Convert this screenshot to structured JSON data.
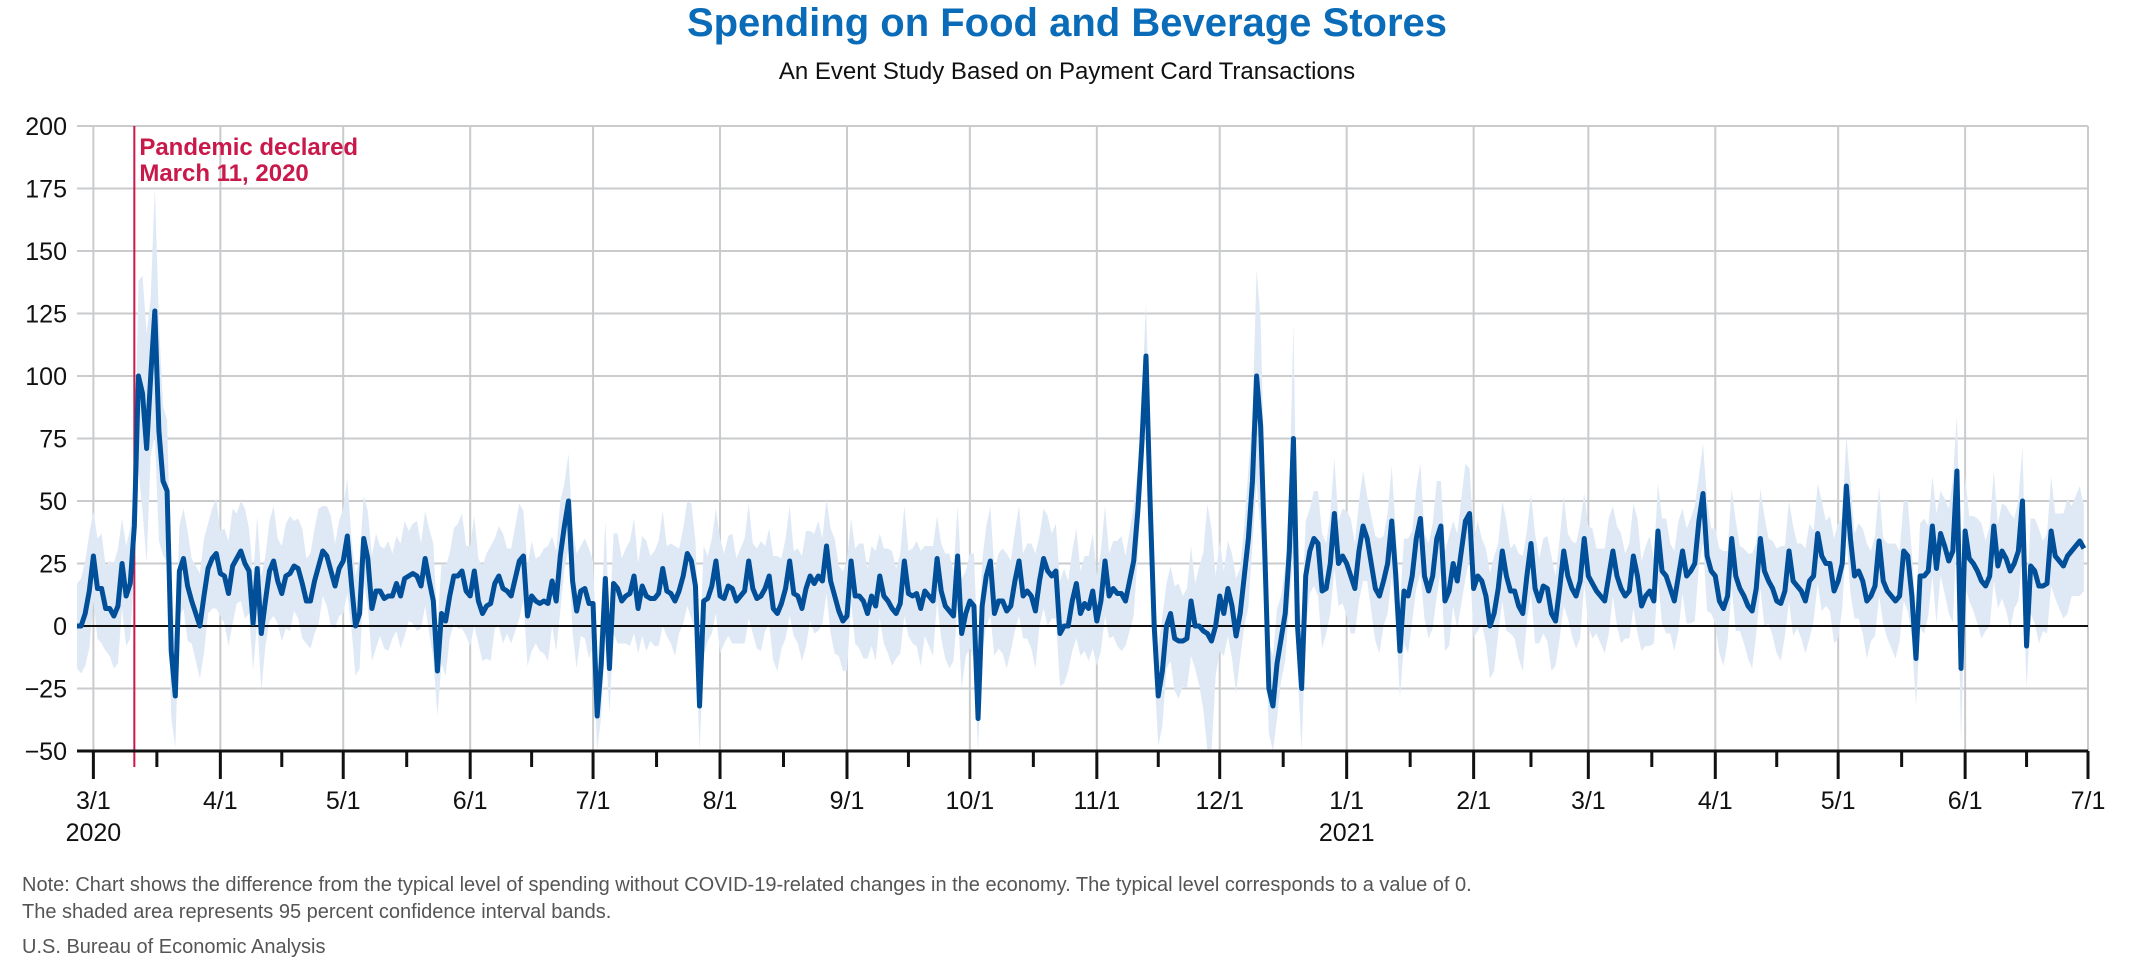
{
  "chart_data": {
    "type": "line",
    "title": "Spending on Food and Beverage Stores",
    "subtitle": "An Event Study Based on Payment Card Transactions",
    "xlabel": "",
    "ylabel": "",
    "ylim": [
      -50,
      200
    ],
    "yticks": [
      200,
      175,
      150,
      125,
      100,
      75,
      50,
      25,
      0,
      -25,
      -50
    ],
    "ytick_labels": [
      "200",
      "175",
      "150",
      "125",
      "100",
      "75",
      "50",
      "25",
      "0",
      "−25",
      "−50"
    ],
    "xlim": [
      "2020-02-26",
      "2021-07-01"
    ],
    "xticks": [
      {
        "date": "2020-03-01",
        "label": "3/1",
        "year": "2020"
      },
      {
        "date": "2020-04-01",
        "label": "4/1"
      },
      {
        "date": "2020-05-01",
        "label": "5/1"
      },
      {
        "date": "2020-06-01",
        "label": "6/1"
      },
      {
        "date": "2020-07-01",
        "label": "7/1"
      },
      {
        "date": "2020-08-01",
        "label": "8/1"
      },
      {
        "date": "2020-09-01",
        "label": "9/1"
      },
      {
        "date": "2020-10-01",
        "label": "10/1"
      },
      {
        "date": "2020-11-01",
        "label": "11/1"
      },
      {
        "date": "2020-12-01",
        "label": "12/1"
      },
      {
        "date": "2021-01-01",
        "label": "1/1",
        "year": "2021"
      },
      {
        "date": "2021-02-01",
        "label": "2/1"
      },
      {
        "date": "2021-03-01",
        "label": "3/1"
      },
      {
        "date": "2021-04-01",
        "label": "4/1"
      },
      {
        "date": "2021-05-01",
        "label": "5/1"
      },
      {
        "date": "2021-06-01",
        "label": "6/1"
      },
      {
        "date": "2021-07-01",
        "label": "7/1"
      }
    ],
    "grid": true,
    "annotation": {
      "date": "2020-03-11",
      "lines": [
        "Pandemic declared",
        "March 11, 2020"
      ],
      "color": "#c8194a"
    },
    "series": [
      {
        "name": "Difference from typical spending",
        "color": "#004f98",
        "start_date": "2020-02-26",
        "frequency": "daily",
        "values": [
          0,
          0,
          5,
          14,
          28,
          15,
          15,
          7,
          7,
          4,
          8,
          25,
          12,
          17,
          40,
          100,
          93,
          71,
          100,
          126,
          78,
          58,
          54,
          -10,
          -28,
          22,
          27,
          16,
          10,
          5,
          0,
          12,
          23,
          27,
          29,
          21,
          20,
          13,
          24,
          27,
          30,
          25,
          22,
          1,
          23,
          -3,
          10,
          22,
          26,
          18,
          13,
          20,
          21,
          24,
          23,
          17,
          10,
          10,
          18,
          24,
          30,
          28,
          22,
          16,
          23,
          26,
          36,
          17,
          0,
          5,
          35,
          27,
          7,
          14,
          14,
          11,
          12,
          12,
          17,
          12,
          19,
          20,
          21,
          20,
          16,
          27,
          18,
          10,
          -18,
          5,
          2,
          12,
          20,
          20,
          22,
          14,
          12,
          22,
          10,
          5,
          8,
          9,
          17,
          20,
          15,
          14,
          12,
          19,
          26,
          28,
          4,
          12,
          10,
          9,
          10,
          9,
          18,
          10,
          28,
          40,
          50,
          18,
          6,
          14,
          15,
          9,
          9,
          -36,
          -15,
          19,
          -17,
          17,
          15,
          10,
          12,
          13,
          20,
          7,
          16,
          12,
          11,
          11,
          13,
          23,
          14,
          13,
          10,
          14,
          20,
          29,
          26,
          16,
          -32,
          10,
          11,
          16,
          26,
          12,
          11,
          16,
          15,
          10,
          12,
          14,
          26,
          15,
          11,
          12,
          15,
          20,
          7,
          5,
          9,
          15,
          26,
          13,
          12,
          7,
          15,
          20,
          17,
          20,
          18,
          32,
          18,
          12,
          6,
          2,
          4,
          26,
          12,
          12,
          10,
          5,
          12,
          8,
          20,
          12,
          10,
          7,
          5,
          9,
          26,
          13,
          12,
          13,
          7,
          14,
          12,
          10,
          27,
          14,
          8,
          6,
          4,
          28,
          -3,
          5,
          10,
          8,
          -37,
          8,
          20,
          26,
          5,
          10,
          10,
          6,
          8,
          18,
          26,
          12,
          14,
          12,
          6,
          18,
          27,
          22,
          20,
          22,
          -3,
          0,
          0,
          10,
          17,
          5,
          9,
          7,
          14,
          2,
          10,
          26,
          12,
          15,
          13,
          13,
          10,
          18,
          26,
          46,
          73,
          108,
          50,
          0,
          -28,
          -18,
          0,
          5,
          -5,
          -6,
          -6,
          -5,
          10,
          0,
          0,
          -2,
          -3,
          -6,
          0,
          12,
          5,
          15,
          8,
          -4,
          5,
          20,
          35,
          58,
          100,
          80,
          30,
          -25,
          -32,
          -15,
          -5,
          5,
          30,
          75,
          0,
          -25,
          20,
          30,
          35,
          33,
          14,
          15,
          25,
          45,
          25,
          28,
          25,
          20,
          15,
          30,
          40,
          35,
          25,
          15,
          12,
          18,
          25,
          42,
          20,
          -10,
          14,
          12,
          20,
          35,
          43,
          20,
          14,
          20,
          35,
          40,
          10,
          14,
          25,
          18,
          30,
          42,
          45,
          15,
          20,
          18,
          12,
          0,
          5,
          15,
          30,
          20,
          14,
          14,
          8,
          5,
          20,
          33,
          15,
          10,
          16,
          15,
          5,
          2,
          15,
          30,
          20,
          15,
          12,
          18,
          35,
          20,
          17,
          14,
          12,
          10,
          20,
          30,
          20,
          15,
          12,
          14,
          28,
          20,
          8,
          12,
          14,
          10,
          38,
          22,
          20,
          15,
          10,
          20,
          30,
          20,
          22,
          25,
          42,
          53,
          28,
          22,
          20,
          10,
          7,
          12,
          35,
          20,
          15,
          12,
          8,
          6,
          15,
          35,
          22,
          18,
          15,
          10,
          9,
          14,
          30,
          18,
          16,
          14,
          10,
          18,
          20,
          37,
          28,
          25,
          25,
          14,
          18,
          25,
          56,
          35,
          20,
          22,
          18,
          10,
          12,
          16,
          34,
          18,
          14,
          12,
          10,
          12,
          30,
          28,
          12,
          -13,
          20,
          20,
          22,
          40,
          23,
          37,
          32,
          26,
          30,
          62,
          -17,
          38,
          27,
          25,
          22,
          18,
          16,
          20,
          40,
          24,
          30,
          27,
          22,
          25,
          30,
          50,
          -8,
          24,
          22,
          16,
          16,
          17,
          38,
          28,
          26,
          24,
          28,
          30,
          32,
          34,
          31
        ]
      }
    ],
    "confidence_band": {
      "label": "95 percent confidence interval",
      "color": "#dfe9f6",
      "default_half_width": 20,
      "half_width_overrides": {
        "15": 40,
        "16": 45,
        "17": 40,
        "18": 35,
        "19": 50,
        "20": 40,
        "21": 35,
        "22": 30,
        "23": 25,
        "24": 18,
        "274": 25,
        "275": 30,
        "276": 45,
        "277": 50,
        "286": 25,
        "287": 30,
        "288": 45,
        "289": 40,
        "297": 40,
        "299": 25,
        "458": 25,
        "459": 25,
        "460": 30,
        "461": 20
      }
    },
    "zero_line": 0
  },
  "notes": {
    "line1": "Note: Chart shows the difference from the typical level of spending without COVID-19-related changes in the economy. The typical level corresponds to a value of 0.",
    "line2": "The shaded area represents 95 percent confidence interval bands."
  },
  "source": "U.S. Bureau of Economic Analysis"
}
